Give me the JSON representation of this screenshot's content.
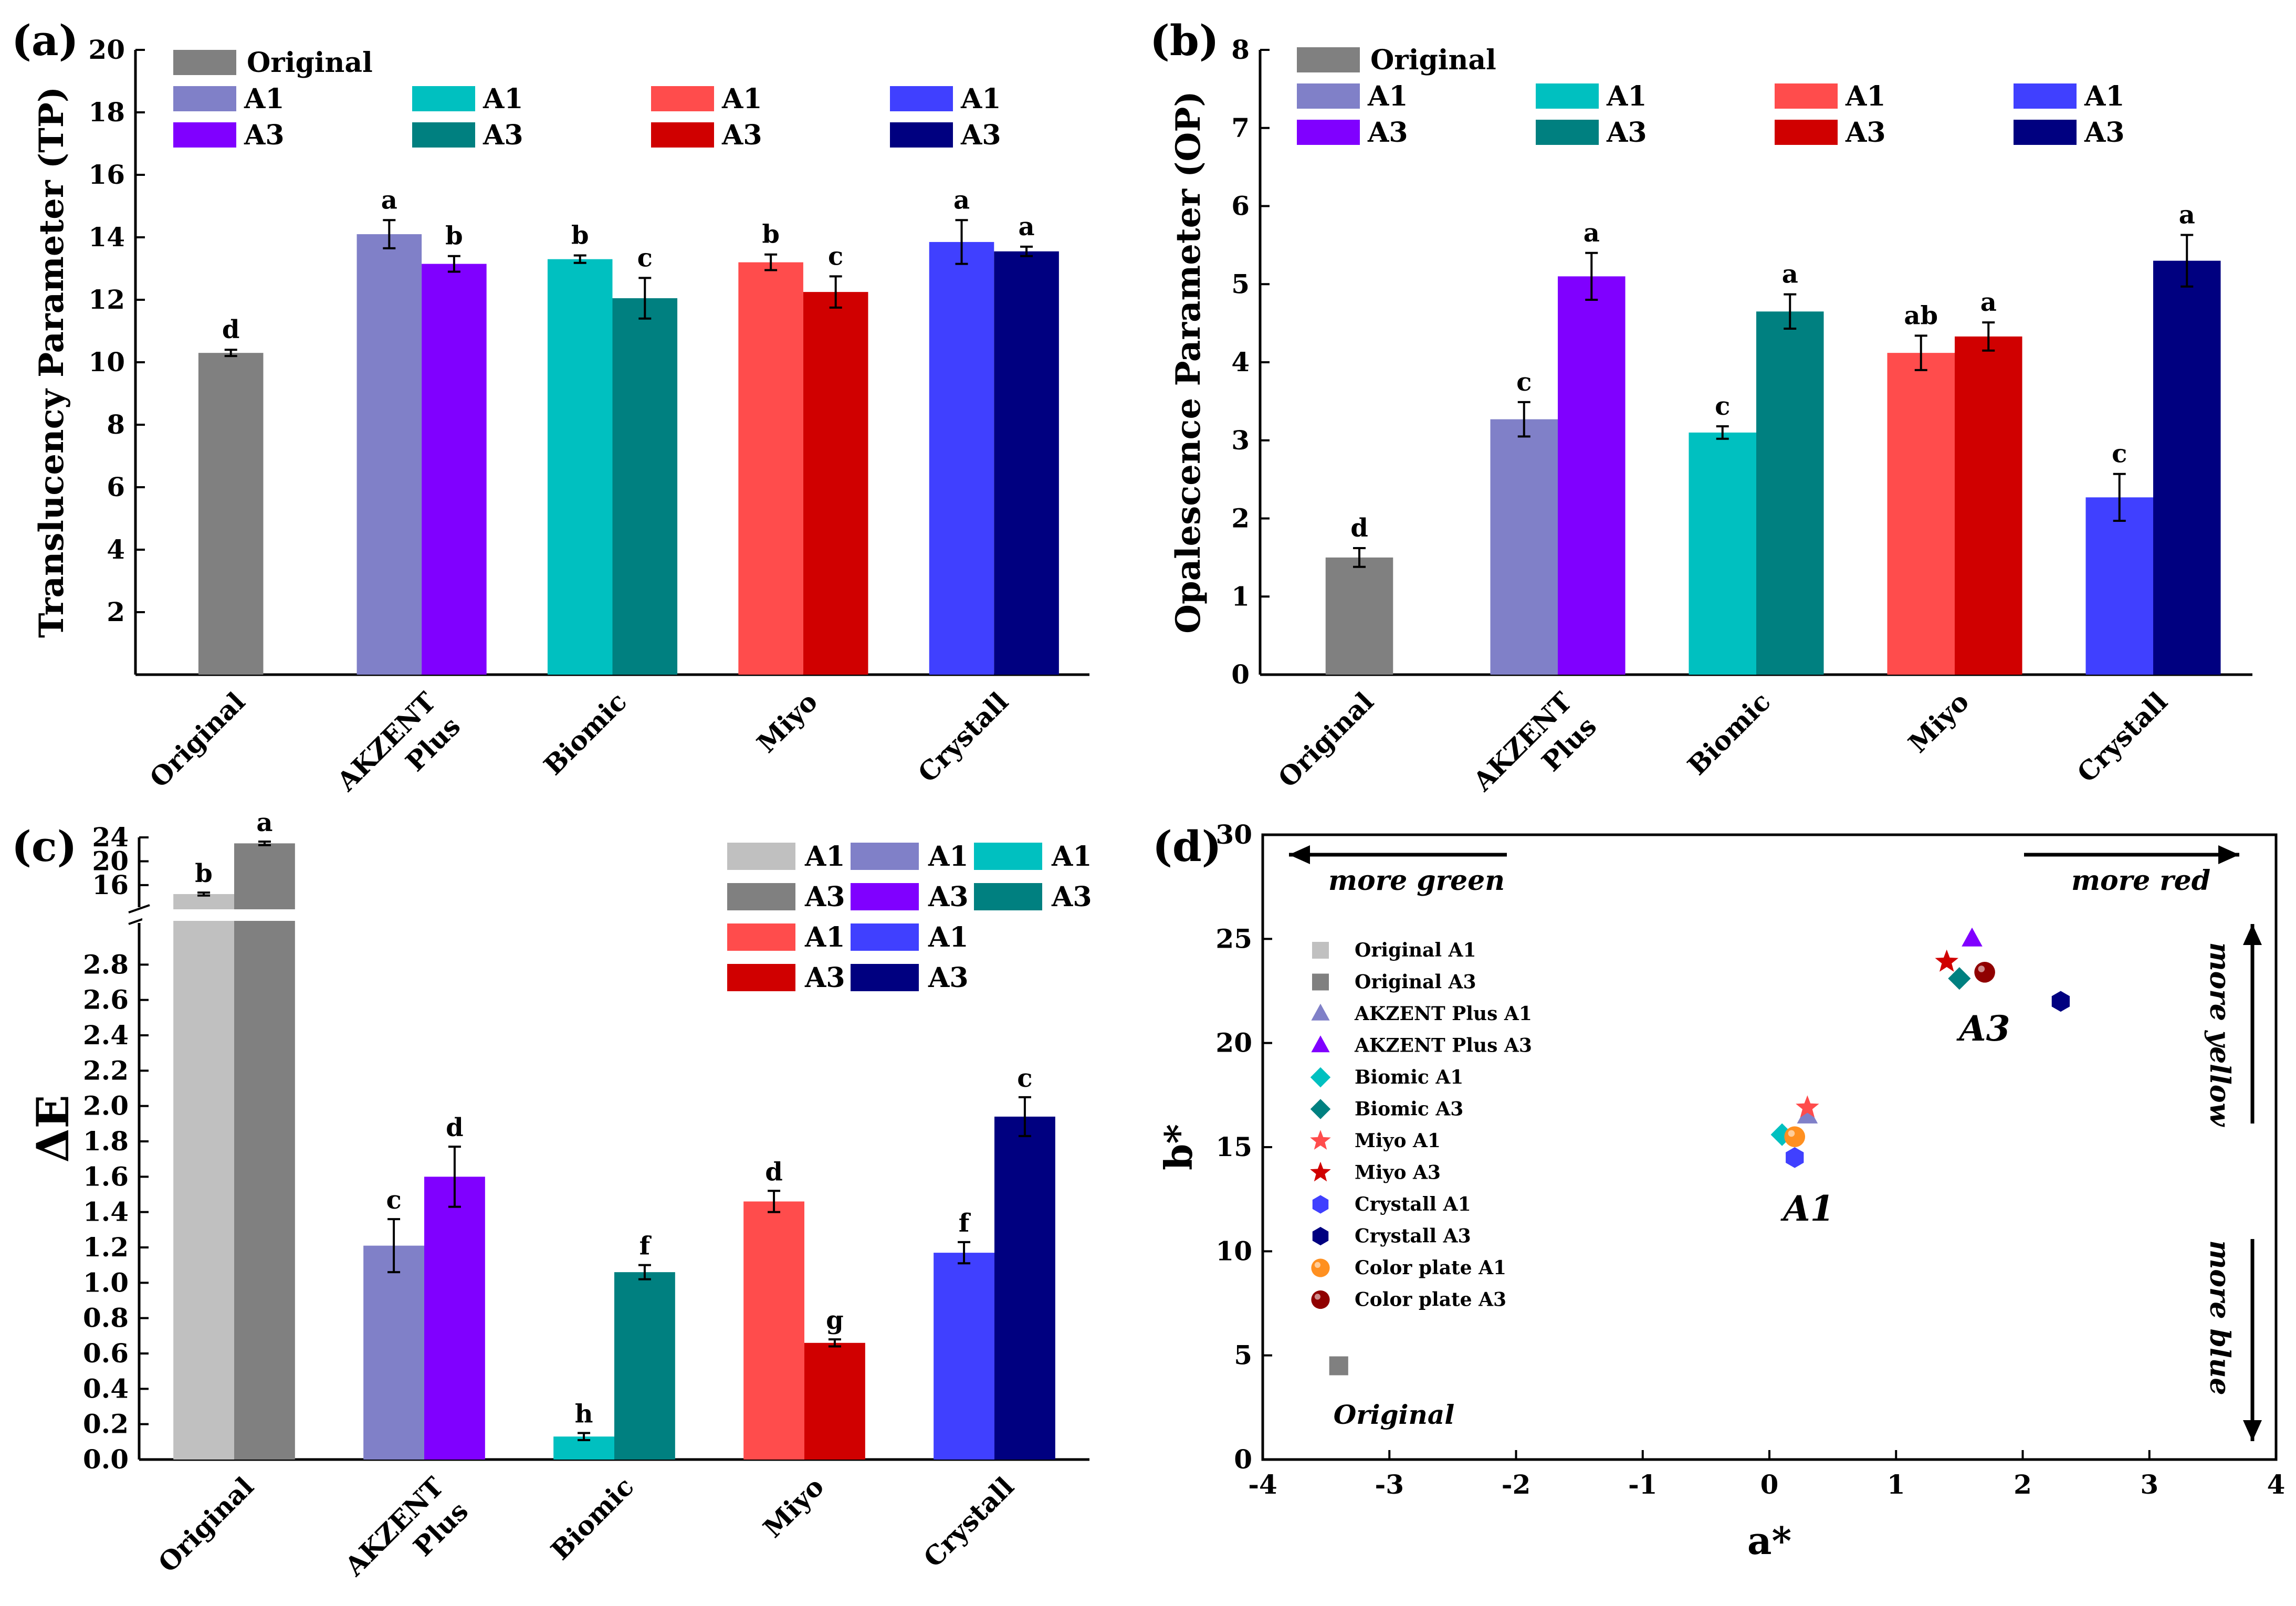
{
  "colors": {
    "original_a1": "#C0C0C0",
    "original_a3": "#808080",
    "original": "#808080",
    "akzent_a1": "#8080C8",
    "akzent_a3": "#8000FF",
    "biomic_a1": "#00C0C0",
    "biomic_a3": "#008080",
    "miyo_a1": "#FF4C4C",
    "miyo_a3": "#D00000",
    "crystall_a1": "#4040FF",
    "crystall_a3": "#000080",
    "color_plate_a1": "#FF9020",
    "color_plate_a3": "#900000"
  },
  "bar_legend": {
    "original_label": "Original",
    "rows": [
      [
        "A1",
        "A1",
        "A1",
        "A1"
      ],
      [
        "A3",
        "A3",
        "A3",
        "A3"
      ]
    ]
  },
  "de_legend": {
    "rows": [
      [
        "A1",
        "A1",
        "A1"
      ],
      [
        "A3",
        "A3",
        "A3"
      ],
      [
        "A1",
        "A1"
      ],
      [
        "A3",
        "A3"
      ]
    ]
  },
  "chart_data": [
    {
      "panel": "(a)",
      "type": "bar",
      "ylabel": "Translucency Parameter (TP)",
      "ylim": [
        0,
        20
      ],
      "yticks": [
        2,
        4,
        6,
        8,
        10,
        12,
        14,
        16,
        18,
        20
      ],
      "categories": [
        "Original",
        "AKZENT Plus",
        "Biomic",
        "Miyo",
        "Crystall"
      ],
      "bars": [
        {
          "cat": 0,
          "slot": "single",
          "key": "original",
          "value": 10.3,
          "err": 0.1,
          "letter": "d"
        },
        {
          "cat": 1,
          "slot": "A1",
          "key": "akzent_a1",
          "value": 14.1,
          "err": 0.45,
          "letter": "a"
        },
        {
          "cat": 1,
          "slot": "A3",
          "key": "akzent_a3",
          "value": 13.15,
          "err": 0.25,
          "letter": "b"
        },
        {
          "cat": 2,
          "slot": "A1",
          "key": "biomic_a1",
          "value": 13.3,
          "err": 0.12,
          "letter": "b"
        },
        {
          "cat": 2,
          "slot": "A3",
          "key": "biomic_a3",
          "value": 12.05,
          "err": 0.65,
          "letter": "c"
        },
        {
          "cat": 3,
          "slot": "A1",
          "key": "miyo_a1",
          "value": 13.2,
          "err": 0.25,
          "letter": "b"
        },
        {
          "cat": 3,
          "slot": "A3",
          "key": "miyo_a3",
          "value": 12.25,
          "err": 0.5,
          "letter": "c"
        },
        {
          "cat": 4,
          "slot": "A1",
          "key": "crystall_a1",
          "value": 13.85,
          "err": 0.7,
          "letter": "a"
        },
        {
          "cat": 4,
          "slot": "A3",
          "key": "crystall_a3",
          "value": 13.55,
          "err": 0.15,
          "letter": "a"
        }
      ]
    },
    {
      "panel": "(b)",
      "type": "bar",
      "ylabel": "Opalescence Parameter (OP)",
      "ylim": [
        0,
        8
      ],
      "yticks": [
        0,
        1,
        2,
        3,
        4,
        5,
        6,
        7,
        8
      ],
      "categories": [
        "Original",
        "AKZENT Plus",
        "Biomic",
        "Miyo",
        "Crystall"
      ],
      "bars": [
        {
          "cat": 0,
          "slot": "single",
          "key": "original",
          "value": 1.5,
          "err": 0.12,
          "letter": "d"
        },
        {
          "cat": 1,
          "slot": "A1",
          "key": "akzent_a1",
          "value": 3.27,
          "err": 0.22,
          "letter": "c"
        },
        {
          "cat": 1,
          "slot": "A3",
          "key": "akzent_a3",
          "value": 5.1,
          "err": 0.3,
          "letter": "a"
        },
        {
          "cat": 2,
          "slot": "A1",
          "key": "biomic_a1",
          "value": 3.1,
          "err": 0.08,
          "letter": "c"
        },
        {
          "cat": 2,
          "slot": "A3",
          "key": "biomic_a3",
          "value": 4.65,
          "err": 0.22,
          "letter": "a"
        },
        {
          "cat": 3,
          "slot": "A1",
          "key": "miyo_a1",
          "value": 4.12,
          "err": 0.22,
          "letter": "ab"
        },
        {
          "cat": 3,
          "slot": "A3",
          "key": "miyo_a3",
          "value": 4.33,
          "err": 0.18,
          "letter": "a"
        },
        {
          "cat": 4,
          "slot": "A1",
          "key": "crystall_a1",
          "value": 2.27,
          "err": 0.3,
          "letter": "c"
        },
        {
          "cat": 4,
          "slot": "A3",
          "key": "crystall_a3",
          "value": 5.3,
          "err": 0.33,
          "letter": "a"
        }
      ]
    },
    {
      "panel": "(c)",
      "type": "bar",
      "ylabel": "ΔE",
      "axis_break": {
        "lower_max": 3.0,
        "upper_range": [
          13,
          24
        ]
      },
      "yticks_lower": [
        0.0,
        0.2,
        0.4,
        0.6,
        0.8,
        1.0,
        1.2,
        1.4,
        1.6,
        1.8,
        2.0,
        2.2,
        2.4,
        2.6,
        2.8
      ],
      "yticks_upper": [
        16,
        20,
        24
      ],
      "categories": [
        "Original",
        "AKZENT Plus",
        "Biomic",
        "Miyo",
        "Crystall"
      ],
      "bars": [
        {
          "cat": 0,
          "slot": "A1",
          "key": "original_a1",
          "value": 14.5,
          "err": 0.25,
          "letter": "b"
        },
        {
          "cat": 0,
          "slot": "A3",
          "key": "original_a3",
          "value": 23.0,
          "err": 0.3,
          "letter": "a"
        },
        {
          "cat": 1,
          "slot": "A1",
          "key": "akzent_a1",
          "value": 1.21,
          "err": 0.15,
          "letter": "c"
        },
        {
          "cat": 1,
          "slot": "A3",
          "key": "akzent_a3",
          "value": 1.6,
          "err": 0.17,
          "letter": "d"
        },
        {
          "cat": 2,
          "slot": "A1",
          "key": "biomic_a1",
          "value": 0.13,
          "err": 0.02,
          "letter": "h"
        },
        {
          "cat": 2,
          "slot": "A3",
          "key": "biomic_a3",
          "value": 1.06,
          "err": 0.04,
          "letter": "f"
        },
        {
          "cat": 3,
          "slot": "A1",
          "key": "miyo_a1",
          "value": 1.46,
          "err": 0.06,
          "letter": "d"
        },
        {
          "cat": 3,
          "slot": "A3",
          "key": "miyo_a3",
          "value": 0.66,
          "err": 0.02,
          "letter": "g"
        },
        {
          "cat": 4,
          "slot": "A1",
          "key": "crystall_a1",
          "value": 1.17,
          "err": 0.06,
          "letter": "f"
        },
        {
          "cat": 4,
          "slot": "A3",
          "key": "crystall_a3",
          "value": 1.94,
          "err": 0.11,
          "letter": "c"
        }
      ]
    },
    {
      "panel": "(d)",
      "type": "scatter",
      "xlabel": "a*",
      "ylabel": "b*",
      "xlim": [
        -4,
        4
      ],
      "ylim": [
        0,
        30
      ],
      "xticks": [
        -4,
        -3,
        -2,
        -1,
        0,
        1,
        2,
        3,
        4
      ],
      "yticks": [
        0,
        5,
        10,
        15,
        20,
        25,
        30
      ],
      "points": [
        {
          "label": "Original A1",
          "key": "original_a1",
          "shape": "square",
          "x": -3.4,
          "y": 4.5
        },
        {
          "label": "Original A3",
          "key": "original_a3",
          "shape": "square",
          "x": -3.4,
          "y": 4.5
        },
        {
          "label": "AKZENT Plus A1",
          "key": "akzent_a1",
          "shape": "triangle",
          "x": 0.3,
          "y": 16.5
        },
        {
          "label": "AKZENT Plus A3",
          "key": "akzent_a3",
          "shape": "triangle",
          "x": 1.6,
          "y": 25.0
        },
        {
          "label": "Biomic A1",
          "key": "biomic_a1",
          "shape": "diamond",
          "x": 0.1,
          "y": 15.6
        },
        {
          "label": "Biomic A3",
          "key": "biomic_a3",
          "shape": "diamond",
          "x": 1.5,
          "y": 23.1
        },
        {
          "label": "Miyo A1",
          "key": "miyo_a1",
          "shape": "star",
          "x": 0.3,
          "y": 16.9
        },
        {
          "label": "Miyo A3",
          "key": "miyo_a3",
          "shape": "star",
          "x": 1.4,
          "y": 23.9
        },
        {
          "label": "Crystall A1",
          "key": "crystall_a1",
          "shape": "hexagon",
          "x": 0.2,
          "y": 14.5
        },
        {
          "label": "Crystall A3",
          "key": "crystall_a3",
          "shape": "hexagon",
          "x": 2.3,
          "y": 22.0
        },
        {
          "label": "Color plate A1",
          "key": "color_plate_a1",
          "shape": "sphere",
          "x": 0.2,
          "y": 15.5
        },
        {
          "label": "Color plate A3",
          "key": "color_plate_a3",
          "shape": "sphere",
          "x": 1.7,
          "y": 23.4
        }
      ],
      "annotations": {
        "more_green": "more green",
        "more_red": "more red",
        "more_yellow": "more yellow",
        "more_blue": "more blue",
        "group_a1": "A1",
        "group_a3": "A3",
        "group_original": "Original"
      }
    }
  ]
}
